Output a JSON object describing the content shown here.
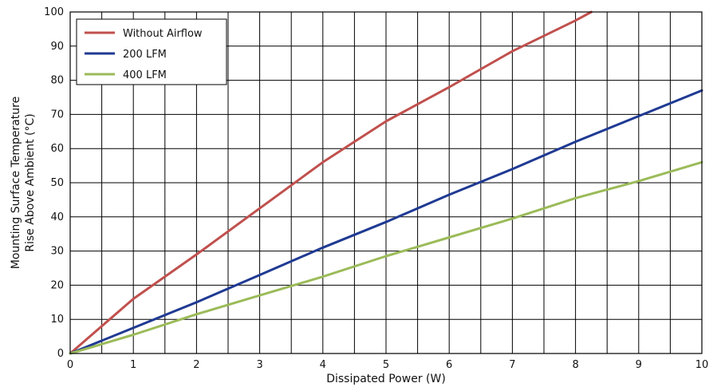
{
  "chart_data": {
    "type": "line",
    "xlabel": "Dissipated Power (W)",
    "ylabel_lines": [
      "Mounting Surface Temperature",
      "Rise Above  Ambient (°C)"
    ],
    "xlim": [
      0,
      10
    ],
    "ylim": [
      0,
      100
    ],
    "x_ticks": [
      "0",
      "1",
      "2",
      "3",
      "4",
      "5",
      "6",
      "7",
      "8",
      "9",
      "10"
    ],
    "y_ticks": [
      "0",
      "10",
      "20",
      "30",
      "40",
      "50",
      "60",
      "70",
      "80",
      "90",
      "100"
    ],
    "grid": true,
    "legend_position": "top-left",
    "series": [
      {
        "name": "Without Airflow",
        "color": "#c0504d",
        "x": [
          0,
          1,
          2,
          3,
          4,
          5,
          6,
          7,
          8,
          8.25
        ],
        "y": [
          0,
          16,
          29,
          42.5,
          56,
          68,
          78,
          88.5,
          97.5,
          100
        ]
      },
      {
        "name": "200 LFM",
        "color": "#1f3a93",
        "x": [
          0,
          1,
          2,
          3,
          4,
          5,
          6,
          7,
          8,
          9,
          10
        ],
        "y": [
          0,
          7.5,
          15,
          23,
          31,
          38.5,
          46.5,
          54,
          62,
          69.5,
          77
        ]
      },
      {
        "name": "400 LFM",
        "color": "#9bbb59",
        "x": [
          0,
          1,
          2,
          3,
          4,
          5,
          6,
          7,
          8,
          9,
          10
        ],
        "y": [
          0,
          5.5,
          11.5,
          17,
          22.5,
          28.5,
          34,
          39.5,
          45.5,
          50.5,
          56
        ]
      }
    ]
  }
}
